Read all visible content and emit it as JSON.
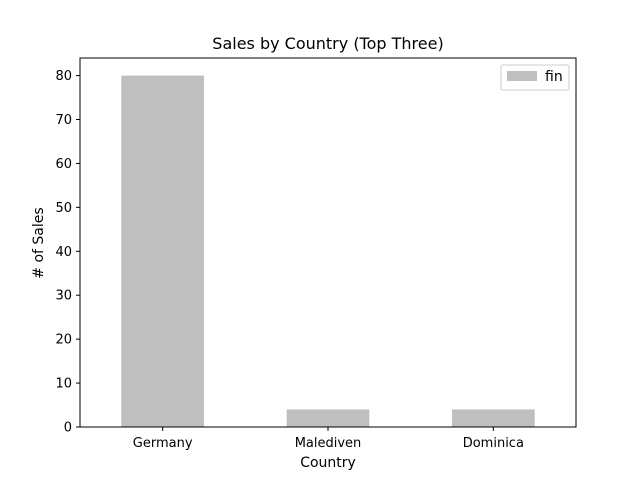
{
  "chart_data": {
    "type": "bar",
    "title": "Sales by Country (Top Three)",
    "xlabel": "Country",
    "ylabel": "# of Sales",
    "categories": [
      "Germany",
      "Malediven",
      "Dominica"
    ],
    "series": [
      {
        "name": "fin",
        "values": [
          80,
          4,
          4
        ],
        "color": "#bfbfbf"
      }
    ],
    "ylim": [
      0,
      84
    ],
    "yticks": [
      0,
      10,
      20,
      30,
      40,
      50,
      60,
      70,
      80
    ],
    "grid": false,
    "legend_position": "top-right"
  }
}
